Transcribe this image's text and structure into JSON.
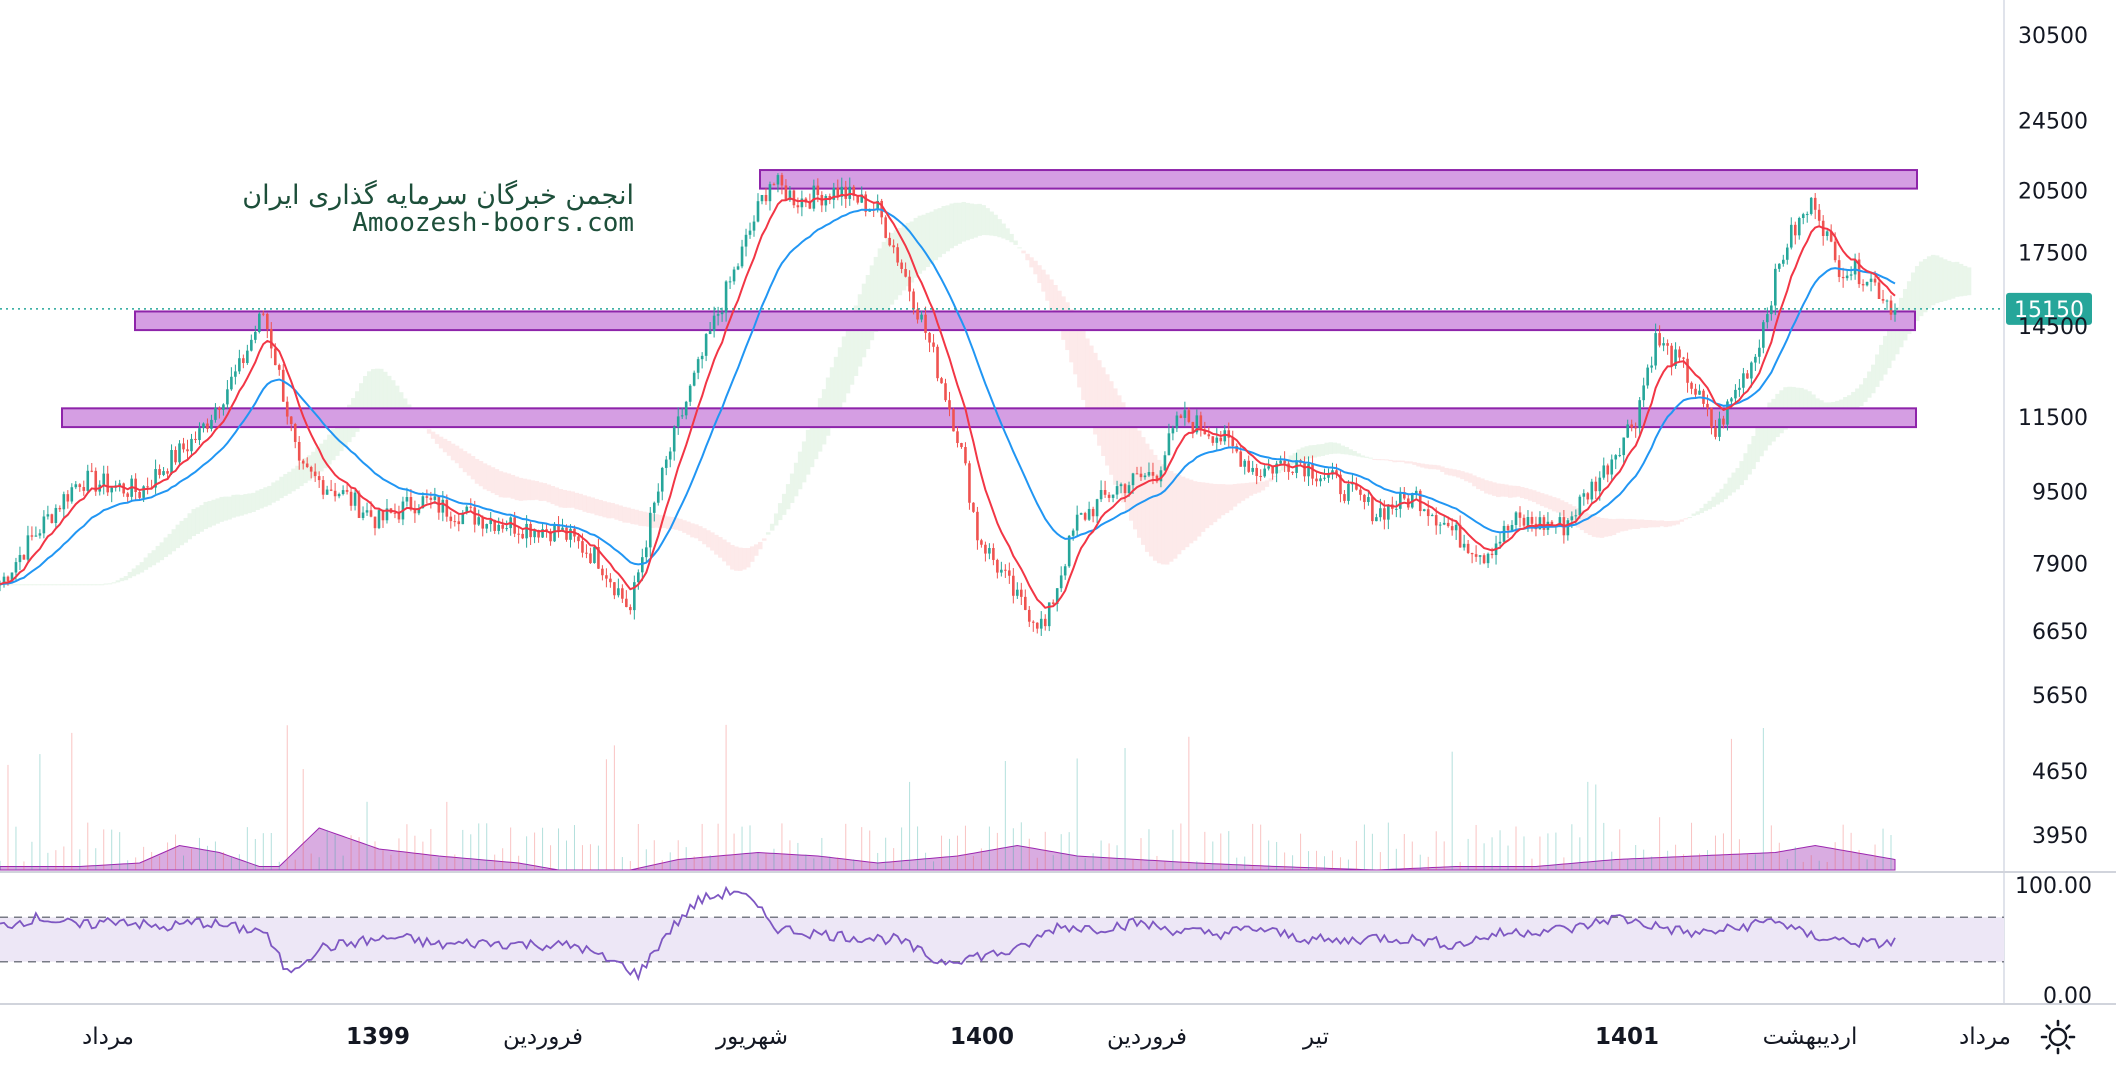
{
  "watermark": {
    "line1": "انجمن خبرگان سرمایه گذاری ایران",
    "line2": "Amoozesh-boors.com"
  },
  "last_price": "15150",
  "colors": {
    "support_zone_fill": "#d59ee3",
    "support_zone_stroke": "#8e24aa",
    "candle_up": "#26a69a",
    "candle_down": "#ef5350",
    "ma_fast": "#f23645",
    "ma_slow": "#2196f3",
    "cloud_bull": "#e8f5e9",
    "cloud_bear": "#fde8e8",
    "volume_area": "#ba68c8",
    "rsi_line": "#7e57c2",
    "rsi_band": "#ede7f6",
    "price_tag": "#26a69a"
  },
  "chart_data": {
    "type": "candlestick",
    "price_scale": "log",
    "y_ticks": [
      "30500",
      "24500",
      "20500",
      "17500",
      "14500",
      "11500",
      "9500",
      "7900",
      "6650",
      "5650",
      "4650",
      "3950"
    ],
    "x_labels": [
      "مرداد",
      "1399",
      "فروردین",
      "شهریور",
      "1400",
      "فروردین",
      "تیر",
      "1401",
      "اردیبهشت",
      "مرداد"
    ],
    "x_labels_bold": [
      "1399",
      "1400",
      "1401"
    ],
    "zones": [
      {
        "low": 20600,
        "high": 21600,
        "label": "resistance"
      },
      {
        "low": 14350,
        "high": 15050,
        "label": "support"
      },
      {
        "low": 11200,
        "high": 11750,
        "label": "support"
      }
    ],
    "current_price_line": 15150,
    "close_path": [
      [
        0,
        7500
      ],
      [
        20,
        9800
      ],
      [
        35,
        9500
      ],
      [
        50,
        11000
      ],
      [
        60,
        13000
      ],
      [
        66,
        15000
      ],
      [
        75,
        10000
      ],
      [
        85,
        9500
      ],
      [
        95,
        8800
      ],
      [
        105,
        9300
      ],
      [
        115,
        9000
      ],
      [
        130,
        8700
      ],
      [
        140,
        8600
      ],
      [
        150,
        8000
      ],
      [
        158,
        7000
      ],
      [
        165,
        9500
      ],
      [
        175,
        13000
      ],
      [
        185,
        17000
      ],
      [
        193,
        21000
      ],
      [
        200,
        20000
      ],
      [
        210,
        20500
      ],
      [
        220,
        19500
      ],
      [
        228,
        16000
      ],
      [
        235,
        13000
      ],
      [
        240,
        11000
      ],
      [
        245,
        8500
      ],
      [
        255,
        7200
      ],
      [
        262,
        6700
      ],
      [
        270,
        8800
      ],
      [
        280,
        9600
      ],
      [
        290,
        10000
      ],
      [
        296,
        11500
      ],
      [
        305,
        11000
      ],
      [
        315,
        10000
      ],
      [
        325,
        10300
      ],
      [
        335,
        9700
      ],
      [
        345,
        9000
      ],
      [
        355,
        9400
      ],
      [
        365,
        8500
      ],
      [
        372,
        8100
      ],
      [
        380,
        8800
      ],
      [
        392,
        8700
      ],
      [
        402,
        10000
      ],
      [
        410,
        11500
      ],
      [
        415,
        14000
      ],
      [
        422,
        13000
      ],
      [
        430,
        11000
      ],
      [
        440,
        13500
      ],
      [
        448,
        18000
      ],
      [
        455,
        20000
      ],
      [
        460,
        17000
      ],
      [
        468,
        16500
      ],
      [
        475,
        15100
      ]
    ],
    "volume_profile": [
      [
        0,
        0.05
      ],
      [
        20,
        0.05
      ],
      [
        35,
        0.1
      ],
      [
        45,
        0.35
      ],
      [
        55,
        0.25
      ],
      [
        65,
        0.05
      ],
      [
        70,
        0.05
      ],
      [
        80,
        0.6
      ],
      [
        95,
        0.3
      ],
      [
        110,
        0.2
      ],
      [
        130,
        0.1
      ],
      [
        140,
        0.0
      ],
      [
        158,
        0.0
      ],
      [
        170,
        0.15
      ],
      [
        190,
        0.25
      ],
      [
        205,
        0.2
      ],
      [
        220,
        0.1
      ],
      [
        240,
        0.2
      ],
      [
        255,
        0.35
      ],
      [
        270,
        0.2
      ],
      [
        285,
        0.15
      ],
      [
        300,
        0.1
      ],
      [
        320,
        0.05
      ],
      [
        345,
        0.0
      ],
      [
        365,
        0.05
      ],
      [
        385,
        0.05
      ],
      [
        405,
        0.15
      ],
      [
        425,
        0.2
      ],
      [
        445,
        0.25
      ],
      [
        455,
        0.35
      ],
      [
        465,
        0.25
      ],
      [
        475,
        0.15
      ]
    ],
    "rsi": {
      "ylim": [
        0,
        100
      ],
      "ticks": [
        "100.00",
        "0.00"
      ],
      "bands": [
        70,
        30
      ],
      "values": [
        [
          0,
          62
        ],
        [
          10,
          70
        ],
        [
          20,
          62
        ],
        [
          30,
          68
        ],
        [
          40,
          60
        ],
        [
          50,
          66
        ],
        [
          60,
          60
        ],
        [
          66,
          58
        ],
        [
          70,
          33
        ],
        [
          72,
          20
        ],
        [
          80,
          42
        ],
        [
          90,
          48
        ],
        [
          100,
          52
        ],
        [
          110,
          45
        ],
        [
          120,
          47
        ],
        [
          130,
          46
        ],
        [
          145,
          44
        ],
        [
          150,
          35
        ],
        [
          157,
          25
        ],
        [
          160,
          18
        ],
        [
          167,
          55
        ],
        [
          175,
          85
        ],
        [
          185,
          95
        ],
        [
          195,
          60
        ],
        [
          205,
          55
        ],
        [
          215,
          52
        ],
        [
          225,
          50
        ],
        [
          235,
          30
        ],
        [
          245,
          35
        ],
        [
          255,
          40
        ],
        [
          265,
          62
        ],
        [
          275,
          60
        ],
        [
          285,
          65
        ],
        [
          295,
          58
        ],
        [
          305,
          55
        ],
        [
          315,
          60
        ],
        [
          325,
          52
        ],
        [
          335,
          48
        ],
        [
          345,
          52
        ],
        [
          355,
          50
        ],
        [
          365,
          45
        ],
        [
          375,
          55
        ],
        [
          385,
          58
        ],
        [
          395,
          60
        ],
        [
          405,
          70
        ],
        [
          415,
          62
        ],
        [
          425,
          55
        ],
        [
          435,
          60
        ],
        [
          445,
          68
        ],
        [
          452,
          55
        ],
        [
          460,
          50
        ],
        [
          470,
          46
        ],
        [
          475,
          48
        ]
      ]
    }
  },
  "icons": {
    "settings": "gear-icon"
  }
}
